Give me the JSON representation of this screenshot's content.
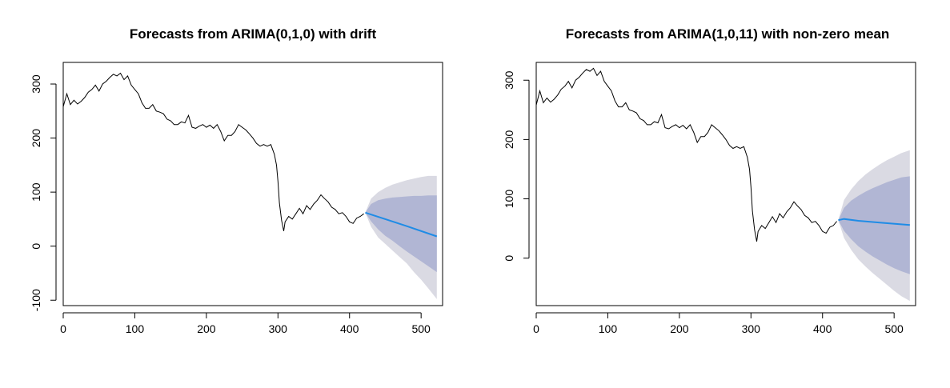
{
  "chart_data": [
    {
      "type": "line",
      "title": "Forecasts from ARIMA(0,1,0) with drift",
      "xlabel": "",
      "ylabel": "",
      "xlim": [
        0,
        530
      ],
      "ylim": [
        -110,
        340
      ],
      "x_ticks": [
        0,
        100,
        200,
        300,
        400,
        500
      ],
      "y_ticks": [
        -100,
        0,
        100,
        200,
        300
      ],
      "x_tick_labels": [
        "0",
        "100",
        "200",
        "300",
        "400",
        "500"
      ],
      "y_tick_labels": [
        "-100",
        "0",
        "100",
        "200",
        "300"
      ],
      "grid": false,
      "colors": {
        "history": "#000000",
        "forecast": "#1f8ce6",
        "band80": "#b1b6d4",
        "band95": "#dadae3"
      },
      "history": {
        "x": [
          0,
          5,
          10,
          15,
          20,
          25,
          30,
          35,
          40,
          45,
          50,
          55,
          60,
          65,
          70,
          75,
          80,
          85,
          90,
          95,
          100,
          105,
          110,
          115,
          120,
          125,
          130,
          135,
          140,
          145,
          150,
          155,
          160,
          165,
          170,
          175,
          180,
          185,
          190,
          195,
          200,
          205,
          210,
          215,
          220,
          225,
          230,
          235,
          240,
          245,
          250,
          255,
          260,
          265,
          270,
          275,
          280,
          285,
          290,
          295,
          298,
          300,
          302,
          305,
          308,
          310,
          315,
          320,
          325,
          330,
          335,
          340,
          345,
          350,
          355,
          360,
          365,
          370,
          375,
          380,
          385,
          390,
          395,
          400,
          405,
          410,
          415,
          420
        ],
        "y": [
          258,
          282,
          262,
          270,
          263,
          268,
          275,
          285,
          290,
          298,
          287,
          300,
          305,
          312,
          318,
          315,
          320,
          308,
          315,
          298,
          290,
          282,
          265,
          255,
          255,
          262,
          250,
          248,
          245,
          235,
          232,
          225,
          225,
          230,
          228,
          242,
          220,
          218,
          222,
          225,
          220,
          224,
          218,
          225,
          212,
          195,
          205,
          205,
          212,
          225,
          220,
          215,
          208,
          200,
          190,
          185,
          188,
          185,
          188,
          170,
          150,
          120,
          80,
          48,
          28,
          45,
          55,
          50,
          60,
          70,
          60,
          75,
          68,
          78,
          85,
          95,
          88,
          82,
          72,
          68,
          60,
          62,
          55,
          45,
          42,
          52,
          55,
          60
        ],
        "forecast": {
          "x": [
            422,
            450,
            480,
            522
          ],
          "y": [
            62,
            50,
            37,
            18
          ]
        },
        "band80": {
          "x": [
            422,
            430,
            440,
            450,
            460,
            470,
            480,
            490,
            500,
            510,
            522
          ],
          "upper": [
            62,
            78,
            85,
            88,
            90,
            91,
            92,
            93,
            93,
            94,
            94
          ],
          "lower": [
            62,
            46,
            31,
            19,
            10,
            0,
            -10,
            -19,
            -28,
            -37,
            -48
          ]
        },
        "band95": {
          "x": [
            422,
            430,
            440,
            450,
            460,
            470,
            480,
            490,
            500,
            510,
            522
          ],
          "upper": [
            62,
            88,
            100,
            108,
            114,
            118,
            122,
            125,
            128,
            130,
            130
          ],
          "lower": [
            62,
            36,
            16,
            4,
            -8,
            -20,
            -32,
            -48,
            -62,
            -78,
            -98
          ]
        }
      }
    },
    {
      "type": "line",
      "title": "Forecasts from ARIMA(1,0,11) with non-zero mean",
      "xlabel": "",
      "ylabel": "",
      "xlim": [
        0,
        530
      ],
      "ylim": [
        -80,
        330
      ],
      "x_ticks": [
        0,
        100,
        200,
        300,
        400,
        500
      ],
      "y_ticks": [
        0,
        100,
        200,
        300
      ],
      "x_tick_labels": [
        "0",
        "100",
        "200",
        "300",
        "400",
        "500"
      ],
      "y_tick_labels": [
        "0",
        "100",
        "200",
        "300"
      ],
      "grid": false,
      "colors": {
        "history": "#000000",
        "forecast": "#1f8ce6",
        "band80": "#b1b6d4",
        "band95": "#dadae3"
      },
      "history": {
        "x": [
          0,
          5,
          10,
          15,
          20,
          25,
          30,
          35,
          40,
          45,
          50,
          55,
          60,
          65,
          70,
          75,
          80,
          85,
          90,
          95,
          100,
          105,
          110,
          115,
          120,
          125,
          130,
          135,
          140,
          145,
          150,
          155,
          160,
          165,
          170,
          175,
          180,
          185,
          190,
          195,
          200,
          205,
          210,
          215,
          220,
          225,
          230,
          235,
          240,
          245,
          250,
          255,
          260,
          265,
          270,
          275,
          280,
          285,
          290,
          295,
          298,
          300,
          302,
          305,
          308,
          310,
          315,
          320,
          325,
          330,
          335,
          340,
          345,
          350,
          355,
          360,
          365,
          370,
          375,
          380,
          385,
          390,
          395,
          400,
          405,
          410,
          415,
          420
        ],
        "y": [
          258,
          282,
          262,
          270,
          263,
          268,
          275,
          285,
          290,
          298,
          287,
          300,
          305,
          312,
          318,
          315,
          320,
          308,
          315,
          298,
          290,
          282,
          265,
          255,
          255,
          262,
          250,
          248,
          245,
          235,
          232,
          225,
          225,
          230,
          228,
          242,
          220,
          218,
          222,
          225,
          220,
          224,
          218,
          225,
          212,
          195,
          205,
          205,
          212,
          225,
          220,
          215,
          208,
          200,
          190,
          185,
          188,
          185,
          188,
          170,
          150,
          120,
          80,
          48,
          28,
          45,
          55,
          50,
          60,
          70,
          60,
          75,
          68,
          78,
          85,
          95,
          88,
          82,
          72,
          68,
          60,
          62,
          55,
          45,
          42,
          52,
          55,
          62
        ],
        "forecast": {
          "x": [
            422,
            430,
            450,
            480,
            522
          ],
          "y": [
            64,
            66,
            63,
            60,
            56
          ]
        },
        "band80": {
          "x": [
            422,
            430,
            440,
            450,
            460,
            470,
            480,
            490,
            500,
            510,
            522
          ],
          "upper": [
            64,
            85,
            97,
            105,
            112,
            118,
            123,
            128,
            132,
            136,
            138
          ],
          "lower": [
            64,
            46,
            32,
            20,
            11,
            3,
            -4,
            -11,
            -17,
            -22,
            -27
          ]
        },
        "band95": {
          "x": [
            422,
            430,
            440,
            450,
            460,
            470,
            480,
            490,
            500,
            510,
            522
          ],
          "upper": [
            64,
            98,
            116,
            130,
            141,
            150,
            158,
            165,
            171,
            177,
            182
          ],
          "lower": [
            64,
            34,
            14,
            -2,
            -14,
            -25,
            -35,
            -45,
            -55,
            -64,
            -72
          ]
        }
      }
    }
  ]
}
